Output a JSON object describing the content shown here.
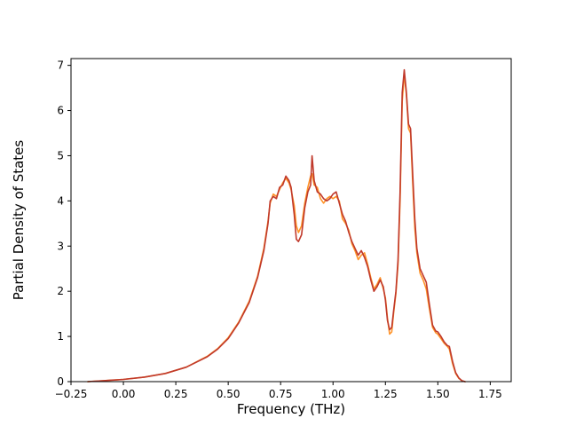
{
  "figure": {
    "background": "#ffffff"
  },
  "chart_data": {
    "type": "line",
    "title": "",
    "xlabel": "Frequency (THz)",
    "ylabel": "Partial Density of States",
    "xlim": [
      -0.25,
      1.85
    ],
    "ylim": [
      0,
      7.15
    ],
    "grid": false,
    "legend": "none",
    "xticks": [
      -0.25,
      0.0,
      0.25,
      0.5,
      0.75,
      1.0,
      1.25,
      1.5,
      1.75
    ],
    "xtick_labels": [
      "−0.25",
      "0.00",
      "0.25",
      "0.50",
      "0.75",
      "1.00",
      "1.25",
      "1.50",
      "1.75"
    ],
    "yticks": [
      0,
      1,
      2,
      3,
      4,
      5,
      6,
      7
    ],
    "ytick_labels": [
      "0",
      "1",
      "2",
      "3",
      "4",
      "5",
      "6",
      "7"
    ],
    "x": [
      -0.17,
      -0.1,
      0.0,
      0.1,
      0.2,
      0.3,
      0.4,
      0.45,
      0.5,
      0.55,
      0.6,
      0.64,
      0.67,
      0.69,
      0.7,
      0.715,
      0.73,
      0.745,
      0.76,
      0.775,
      0.79,
      0.8,
      0.815,
      0.825,
      0.835,
      0.85,
      0.865,
      0.88,
      0.893,
      0.9,
      0.91,
      0.925,
      0.94,
      0.955,
      0.97,
      0.985,
      1.0,
      1.015,
      1.03,
      1.045,
      1.06,
      1.075,
      1.09,
      1.105,
      1.12,
      1.135,
      1.15,
      1.165,
      1.18,
      1.195,
      1.21,
      1.225,
      1.24,
      1.25,
      1.26,
      1.27,
      1.28,
      1.29,
      1.3,
      1.31,
      1.32,
      1.33,
      1.34,
      1.35,
      1.36,
      1.37,
      1.38,
      1.39,
      1.4,
      1.415,
      1.43,
      1.445,
      1.46,
      1.475,
      1.49,
      1.5,
      1.515,
      1.53,
      1.545,
      1.555,
      1.57,
      1.585,
      1.6,
      1.615,
      1.63
    ],
    "series": [
      {
        "name": "orange-series",
        "color": "#ff9328",
        "line_width": 1.6,
        "values": [
          0.0,
          0.02,
          0.05,
          0.1,
          0.18,
          0.32,
          0.56,
          0.73,
          0.97,
          1.32,
          1.78,
          2.33,
          2.95,
          3.55,
          3.95,
          4.15,
          4.1,
          4.25,
          4.4,
          4.5,
          4.4,
          4.25,
          3.9,
          3.45,
          3.3,
          3.45,
          3.95,
          4.3,
          4.55,
          4.6,
          4.35,
          4.3,
          4.05,
          3.95,
          4.05,
          4.1,
          4.05,
          4.1,
          4.0,
          3.6,
          3.5,
          3.35,
          3.05,
          2.9,
          2.7,
          2.8,
          2.85,
          2.6,
          2.3,
          2.05,
          2.15,
          2.3,
          2.05,
          1.85,
          1.4,
          1.05,
          1.1,
          1.55,
          1.95,
          2.6,
          4.0,
          6.2,
          6.8,
          6.35,
          5.6,
          5.5,
          4.4,
          3.4,
          2.85,
          2.4,
          2.25,
          2.05,
          1.6,
          1.2,
          1.08,
          1.05,
          0.95,
          0.85,
          0.78,
          0.72,
          0.4,
          0.18,
          0.07,
          0.02,
          0.0
        ]
      },
      {
        "name": "red-series",
        "color": "#c0392b",
        "line_width": 1.6,
        "values": [
          0.0,
          0.02,
          0.05,
          0.1,
          0.18,
          0.32,
          0.55,
          0.72,
          0.95,
          1.3,
          1.75,
          2.3,
          2.9,
          3.5,
          4.0,
          4.1,
          4.05,
          4.3,
          4.35,
          4.55,
          4.45,
          4.3,
          3.7,
          3.15,
          3.1,
          3.25,
          3.85,
          4.2,
          4.35,
          5.0,
          4.45,
          4.2,
          4.15,
          4.05,
          4.0,
          4.05,
          4.15,
          4.2,
          3.95,
          3.7,
          3.55,
          3.3,
          3.1,
          2.95,
          2.8,
          2.9,
          2.75,
          2.55,
          2.25,
          2.0,
          2.1,
          2.25,
          2.1,
          1.8,
          1.35,
          1.15,
          1.2,
          1.6,
          2.0,
          2.7,
          4.2,
          6.4,
          6.9,
          6.4,
          5.7,
          5.6,
          4.6,
          3.6,
          2.95,
          2.5,
          2.35,
          2.2,
          1.7,
          1.25,
          1.12,
          1.1,
          1.0,
          0.88,
          0.8,
          0.78,
          0.45,
          0.2,
          0.08,
          0.02,
          0.0
        ]
      }
    ],
    "axes_color": "#000000"
  }
}
